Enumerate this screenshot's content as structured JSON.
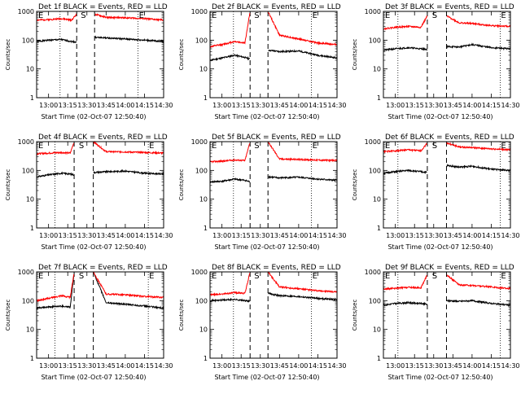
{
  "figure": {
    "common_xlabel": "Start Time (02-Oct-07 12:50:40)",
    "common_ylabel": "Counts/sec",
    "x_tick_labels": [
      "13:00",
      "13:15",
      "13:30",
      "13:45",
      "14:00",
      "14:15",
      "14:30"
    ],
    "y_tick_labels": [
      "1",
      "10",
      "100",
      "1000"
    ],
    "colors": {
      "events": "#000000",
      "lld": "#ff0000",
      "axes": "#000000"
    }
  },
  "chart_data": [
    {
      "type": "line",
      "title": "Det 1f BLACK = Events, RED = LLD",
      "xlabel": "Start Time (02-Oct-07 12:50:40)",
      "ylabel": "Counts/sec",
      "y_scale": "log",
      "ylim": [
        1,
        1000
      ],
      "x_ticks": [
        "13:00",
        "13:15",
        "13:30",
        "13:45",
        "14:00",
        "14:15",
        "14:30"
      ],
      "x_range": [
        "12:50:40",
        "14:30:00"
      ],
      "vlines_dotted": [
        "13:09",
        "14:10"
      ],
      "vlines_dashed": [
        "13:22",
        "13:36"
      ],
      "markers": {
        "start": "E",
        "mid": "S",
        "end": "E"
      },
      "series": [
        {
          "name": "Events",
          "color": "#000000",
          "x": [
            "12:51",
            "13:00",
            "13:10",
            "13:18",
            "13:22",
            "13:36",
            "13:45",
            "14:00",
            "14:15",
            "14:30"
          ],
          "y": [
            90,
            100,
            105,
            90,
            85,
            125,
            120,
            110,
            100,
            90
          ]
        },
        {
          "name": "LLD",
          "color": "#ff0000",
          "x": [
            "12:51",
            "13:00",
            "13:10",
            "13:18",
            "13:22",
            "13:36",
            "13:45",
            "14:00",
            "14:15",
            "14:30"
          ],
          "y": [
            500,
            520,
            560,
            500,
            800,
            800,
            620,
            600,
            560,
            500
          ]
        }
      ]
    },
    {
      "type": "line",
      "title": "Det 2f BLACK = Events, RED = LLD",
      "xlabel": "Start Time (02-Oct-07 12:50:40)",
      "ylabel": "Counts/sec",
      "y_scale": "log",
      "ylim": [
        1,
        1000
      ],
      "x_ticks": [
        "13:00",
        "13:15",
        "13:30",
        "13:45",
        "14:00",
        "14:15",
        "14:30"
      ],
      "x_range": [
        "12:50:40",
        "14:30:00"
      ],
      "vlines_dotted": [
        "13:09",
        "14:10"
      ],
      "vlines_dashed": [
        "13:22",
        "13:36"
      ],
      "markers": {
        "start": "E",
        "mid": "S",
        "end": "E"
      },
      "series": [
        {
          "name": "Events",
          "color": "#000000",
          "x": [
            "12:51",
            "13:00",
            "13:10",
            "13:18",
            "13:22",
            "13:36",
            "13:45",
            "14:00",
            "14:15",
            "14:30"
          ],
          "y": [
            20,
            24,
            30,
            25,
            22,
            45,
            40,
            42,
            30,
            24
          ]
        },
        {
          "name": "LLD",
          "color": "#ff0000",
          "x": [
            "12:51",
            "13:00",
            "13:10",
            "13:18",
            "13:22",
            "13:36",
            "13:45",
            "14:00",
            "14:15",
            "14:30"
          ],
          "y": [
            60,
            70,
            90,
            80,
            1000,
            1000,
            150,
            110,
            80,
            70
          ]
        }
      ]
    },
    {
      "type": "line",
      "title": "Det 3f BLACK = Events, RED = LLD",
      "xlabel": "Start Time (02-Oct-07 12:50:40)",
      "ylabel": "Counts/sec",
      "y_scale": "log",
      "ylim": [
        1,
        1000
      ],
      "x_ticks": [
        "13:00",
        "13:15",
        "13:30",
        "13:45",
        "14:00",
        "14:15",
        "14:30"
      ],
      "x_range": [
        "12:50:40",
        "14:30:00"
      ],
      "vlines_dotted": [
        "13:02",
        "14:22"
      ],
      "vlines_dashed": [
        "13:25",
        "13:40"
      ],
      "markers": {
        "start": "E",
        "mid": "S",
        "end": "E"
      },
      "series": [
        {
          "name": "Events",
          "color": "#000000",
          "x": [
            "12:51",
            "13:00",
            "13:10",
            "13:20",
            "13:25",
            "13:40",
            "13:50",
            "14:00",
            "14:15",
            "14:30"
          ],
          "y": [
            45,
            50,
            55,
            50,
            48,
            60,
            58,
            70,
            55,
            50
          ]
        },
        {
          "name": "LLD",
          "color": "#ff0000",
          "x": [
            "12:51",
            "13:00",
            "13:10",
            "13:20",
            "13:25",
            "13:40",
            "13:50",
            "14:00",
            "14:15",
            "14:30"
          ],
          "y": [
            250,
            280,
            300,
            280,
            700,
            700,
            400,
            380,
            320,
            300
          ]
        }
      ]
    },
    {
      "type": "line",
      "title": "Det 4f BLACK = Events, RED = LLD",
      "xlabel": "Start Time (02-Oct-07 12:50:40)",
      "ylabel": "Counts/sec",
      "y_scale": "log",
      "ylim": [
        1,
        1000
      ],
      "x_ticks": [
        "13:00",
        "13:15",
        "13:30",
        "13:45",
        "14:00",
        "14:15",
        "14:30"
      ],
      "x_range": [
        "12:50:40",
        "14:30:00"
      ],
      "vlines_dotted": [
        "13:05",
        "14:18"
      ],
      "vlines_dashed": [
        "13:20",
        "13:35"
      ],
      "markers": {
        "start": "E",
        "mid": "S",
        "end": "E"
      },
      "series": [
        {
          "name": "Events",
          "color": "#000000",
          "x": [
            "12:51",
            "13:00",
            "13:10",
            "13:17",
            "13:20",
            "13:35",
            "13:45",
            "14:00",
            "14:15",
            "14:30"
          ],
          "y": [
            60,
            70,
            80,
            75,
            70,
            85,
            90,
            95,
            80,
            75
          ]
        },
        {
          "name": "LLD",
          "color": "#ff0000",
          "x": [
            "12:51",
            "13:00",
            "13:10",
            "13:17",
            "13:20",
            "13:35",
            "13:45",
            "14:00",
            "14:15",
            "14:30"
          ],
          "y": [
            380,
            400,
            420,
            400,
            1000,
            1000,
            450,
            440,
            420,
            400
          ]
        }
      ]
    },
    {
      "type": "line",
      "title": "Det 5f BLACK = Events, RED = LLD",
      "xlabel": "Start Time (02-Oct-07 12:50:40)",
      "ylabel": "Counts/sec",
      "y_scale": "log",
      "ylim": [
        1,
        1000
      ],
      "x_ticks": [
        "13:00",
        "13:15",
        "13:30",
        "13:45",
        "14:00",
        "14:15",
        "14:30"
      ],
      "x_range": [
        "12:50:40",
        "14:30:00"
      ],
      "vlines_dotted": [
        "13:09",
        "14:10"
      ],
      "vlines_dashed": [
        "13:22",
        "13:36"
      ],
      "markers": {
        "start": "E",
        "mid": "S",
        "end": "E"
      },
      "series": [
        {
          "name": "Events",
          "color": "#000000",
          "x": [
            "12:51",
            "13:00",
            "13:10",
            "13:18",
            "13:22",
            "13:36",
            "13:45",
            "14:00",
            "14:15",
            "14:30"
          ],
          "y": [
            40,
            42,
            50,
            45,
            40,
            60,
            55,
            58,
            50,
            45
          ]
        },
        {
          "name": "LLD",
          "color": "#ff0000",
          "x": [
            "12:51",
            "13:00",
            "13:10",
            "13:18",
            "13:22",
            "13:36",
            "13:45",
            "14:00",
            "14:15",
            "14:30"
          ],
          "y": [
            200,
            210,
            230,
            220,
            1000,
            1000,
            250,
            240,
            230,
            220
          ]
        }
      ]
    },
    {
      "type": "line",
      "title": "Det 6f BLACK = Events, RED = LLD",
      "xlabel": "Start Time (02-Oct-07 12:50:40)",
      "ylabel": "Counts/sec",
      "y_scale": "log",
      "ylim": [
        1,
        1000
      ],
      "x_ticks": [
        "13:00",
        "13:15",
        "13:30",
        "13:45",
        "14:00",
        "14:15",
        "14:30"
      ],
      "x_range": [
        "12:50:40",
        "14:30:00"
      ],
      "vlines_dotted": [
        "13:02",
        "14:22"
      ],
      "vlines_dashed": [
        "13:25",
        "13:40"
      ],
      "markers": {
        "start": "E",
        "mid": "S",
        "end": "E"
      },
      "series": [
        {
          "name": "Events",
          "color": "#000000",
          "x": [
            "12:51",
            "13:00",
            "13:10",
            "13:20",
            "13:25",
            "13:40",
            "13:50",
            "14:00",
            "14:15",
            "14:30"
          ],
          "y": [
            80,
            90,
            100,
            90,
            85,
            150,
            130,
            140,
            110,
            100
          ]
        },
        {
          "name": "LLD",
          "color": "#ff0000",
          "x": [
            "12:51",
            "13:00",
            "13:10",
            "13:20",
            "13:25",
            "13:40",
            "13:50",
            "14:00",
            "14:15",
            "14:30"
          ],
          "y": [
            450,
            480,
            520,
            480,
            900,
            900,
            650,
            620,
            560,
            520
          ]
        }
      ]
    },
    {
      "type": "line",
      "title": "Det 7f BLACK = Events, RED = LLD",
      "xlabel": "Start Time (02-Oct-07 12:50:40)",
      "ylabel": "Counts/sec",
      "y_scale": "log",
      "ylim": [
        1,
        1000
      ],
      "x_ticks": [
        "13:00",
        "13:15",
        "13:30",
        "13:45",
        "14:00",
        "14:15",
        "14:30"
      ],
      "x_range": [
        "12:50:40",
        "14:30:00"
      ],
      "vlines_dotted": [
        "13:05",
        "14:18"
      ],
      "vlines_dashed": [
        "13:20",
        "13:35"
      ],
      "markers": {
        "start": "E",
        "mid": "S",
        "end": "E"
      },
      "series": [
        {
          "name": "Events",
          "color": "#000000",
          "x": [
            "12:51",
            "13:00",
            "13:10",
            "13:17",
            "13:20",
            "13:35",
            "13:45",
            "14:00",
            "14:15",
            "14:30"
          ],
          "y": [
            55,
            60,
            65,
            60,
            1000,
            1000,
            85,
            75,
            65,
            55
          ]
        },
        {
          "name": "LLD",
          "color": "#ff0000",
          "x": [
            "12:51",
            "13:00",
            "13:10",
            "13:17",
            "13:20",
            "13:35",
            "13:45",
            "14:00",
            "14:15",
            "14:30"
          ],
          "y": [
            100,
            120,
            150,
            130,
            1000,
            1000,
            170,
            160,
            140,
            130
          ]
        }
      ]
    },
    {
      "type": "line",
      "title": "Det 8f BLACK = Events, RED = LLD",
      "xlabel": "Start Time (02-Oct-07 12:50:40)",
      "ylabel": "Counts/sec",
      "y_scale": "log",
      "ylim": [
        1,
        1000
      ],
      "x_ticks": [
        "13:00",
        "13:15",
        "13:30",
        "13:45",
        "14:00",
        "14:15",
        "14:30"
      ],
      "x_range": [
        "12:50:40",
        "14:30:00"
      ],
      "vlines_dotted": [
        "13:09",
        "14:10"
      ],
      "vlines_dashed": [
        "13:22",
        "13:36"
      ],
      "markers": {
        "start": "E",
        "mid": "S",
        "end": "E"
      },
      "series": [
        {
          "name": "Events",
          "color": "#000000",
          "x": [
            "12:51",
            "13:00",
            "13:10",
            "13:18",
            "13:22",
            "13:36",
            "13:45",
            "14:00",
            "14:15",
            "14:30"
          ],
          "y": [
            100,
            105,
            110,
            100,
            95,
            180,
            150,
            140,
            120,
            110
          ]
        },
        {
          "name": "LLD",
          "color": "#ff0000",
          "x": [
            "12:51",
            "13:00",
            "13:10",
            "13:18",
            "13:22",
            "13:36",
            "13:45",
            "14:00",
            "14:15",
            "14:30"
          ],
          "y": [
            160,
            170,
            190,
            180,
            1000,
            1000,
            300,
            260,
            220,
            200
          ]
        }
      ]
    },
    {
      "type": "line",
      "title": "Det 9f BLACK = Events, RED = LLD",
      "xlabel": "Start Time (02-Oct-07 12:50:40)",
      "ylabel": "Counts/sec",
      "y_scale": "log",
      "ylim": [
        1,
        1000
      ],
      "x_ticks": [
        "13:00",
        "13:15",
        "13:30",
        "13:45",
        "14:00",
        "14:15",
        "14:30"
      ],
      "x_range": [
        "12:50:40",
        "14:30:00"
      ],
      "vlines_dotted": [
        "13:02",
        "14:22"
      ],
      "vlines_dashed": [
        "13:25",
        "13:40"
      ],
      "markers": {
        "start": "E",
        "mid": "S",
        "end": "E"
      },
      "series": [
        {
          "name": "Events",
          "color": "#000000",
          "x": [
            "12:51",
            "13:00",
            "13:10",
            "13:20",
            "13:25",
            "13:40",
            "13:50",
            "14:00",
            "14:15",
            "14:30"
          ],
          "y": [
            70,
            80,
            85,
            80,
            75,
            100,
            95,
            100,
            80,
            70
          ]
        },
        {
          "name": "LLD",
          "color": "#ff0000",
          "x": [
            "12:51",
            "13:00",
            "13:10",
            "13:20",
            "13:25",
            "13:40",
            "13:50",
            "14:00",
            "14:15",
            "14:30"
          ],
          "y": [
            250,
            270,
            290,
            280,
            800,
            800,
            350,
            340,
            300,
            260
          ]
        }
      ]
    }
  ]
}
